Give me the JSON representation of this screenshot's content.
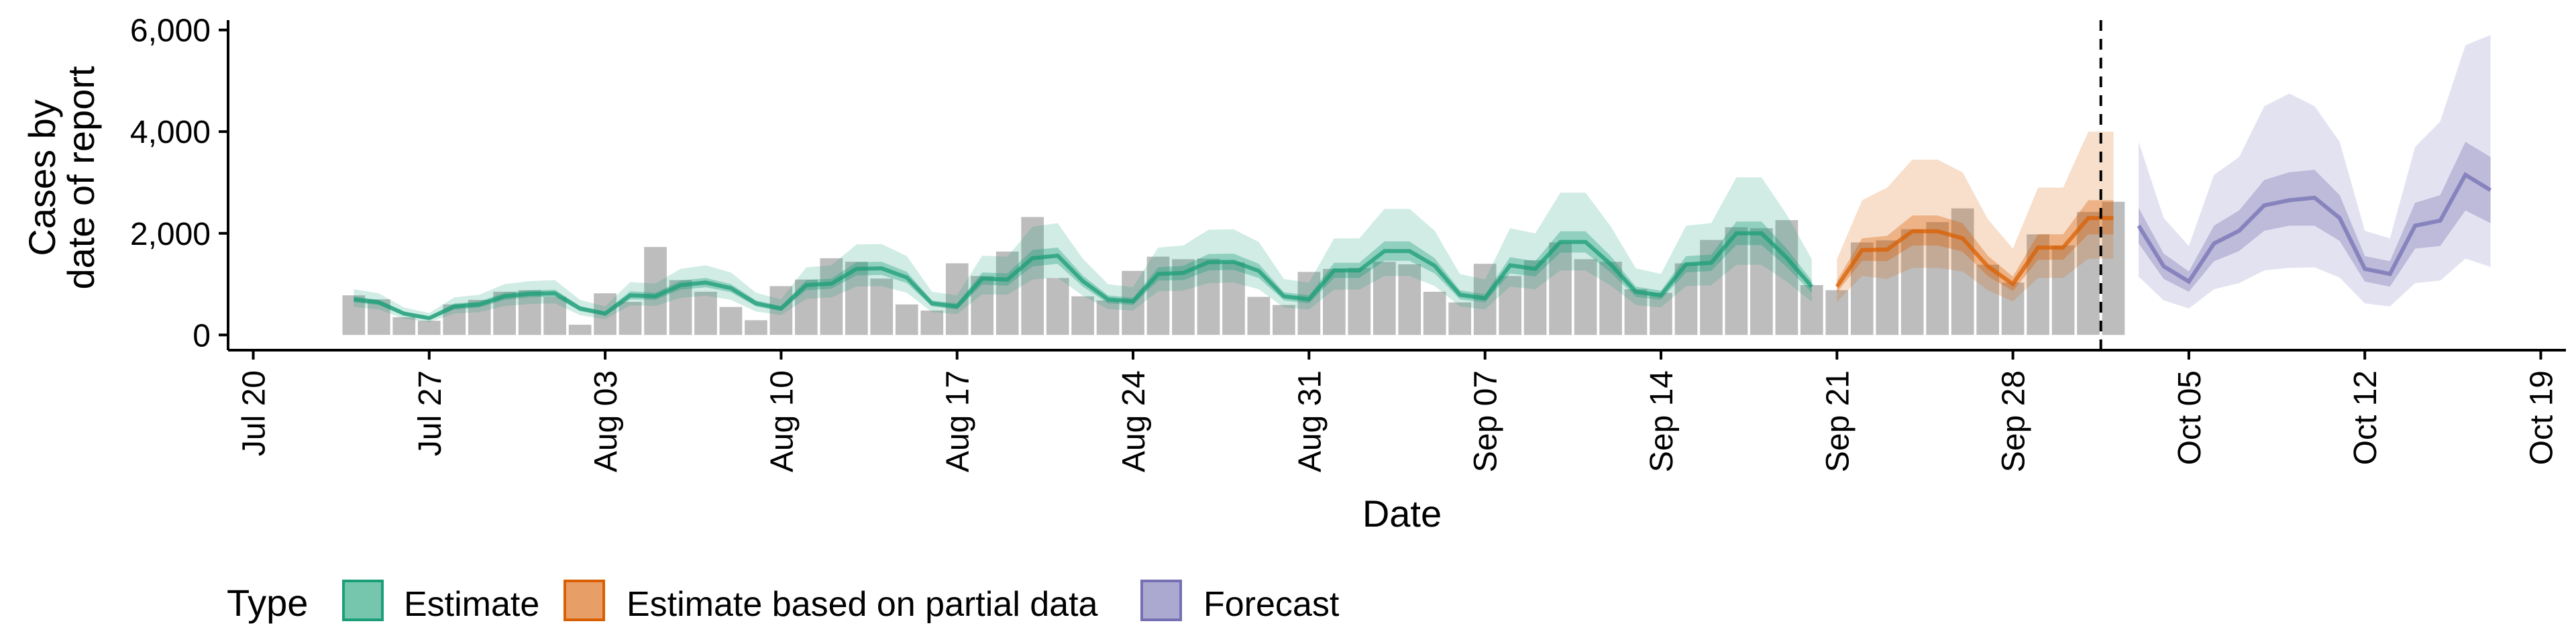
{
  "chart_data": {
    "type": "area",
    "xlabel": "Date",
    "ylabel_lines": [
      "Cases by",
      "date of report"
    ],
    "ylim": [
      -300,
      6300
    ],
    "y_ticks": [
      0,
      2000,
      4000,
      6000
    ],
    "y_tick_labels": [
      "0",
      "2,000",
      "4,000",
      "6,000"
    ],
    "x_ticks": [
      "2020-07-20",
      "2020-07-27",
      "2020-08-03",
      "2020-08-10",
      "2020-08-17",
      "2020-08-24",
      "2020-08-31",
      "2020-09-07",
      "2020-09-14",
      "2020-09-21",
      "2020-09-28",
      "2020-10-05",
      "2020-10-12",
      "2020-10-19"
    ],
    "x_tick_labels": [
      "Jul 20",
      "Jul 27",
      "Aug 03",
      "Aug 10",
      "Aug 17",
      "Aug 24",
      "Aug 31",
      "Sep 07",
      "Sep 14",
      "Sep 21",
      "Sep 28",
      "Oct 05",
      "Oct 12",
      "Oct 19"
    ],
    "xlim": [
      "2020-07-19",
      "2020-10-20"
    ],
    "forecast_start": "2020-10-02",
    "reported_cases": {
      "start_date": "2020-07-24",
      "values": [
        780,
        700,
        350,
        280,
        600,
        690,
        850,
        880,
        750,
        200,
        820,
        650,
        1730,
        1080,
        850,
        550,
        290,
        960,
        1090,
        1510,
        1440,
        1110,
        600,
        480,
        1410,
        1160,
        1640,
        2320,
        1120,
        760,
        680,
        1260,
        1540,
        1490,
        1500,
        1430,
        750,
        590,
        1240,
        1300,
        1320,
        1440,
        1390,
        850,
        640,
        1400,
        1160,
        1470,
        1820,
        1490,
        1440,
        900,
        830,
        1410,
        1870,
        2120,
        2100,
        2260,
        980,
        880,
        1820,
        1860,
        2080,
        2220,
        2490,
        1380,
        1030,
        1980,
        1760,
        2420,
        2620
      ]
    },
    "series": [
      {
        "name": "Estimate",
        "color": "#1b9e77",
        "start_date": "2020-07-24",
        "median": [
          700,
          640,
          420,
          330,
          560,
          600,
          760,
          810,
          820,
          520,
          420,
          780,
          760,
          980,
          1030,
          920,
          620,
          520,
          980,
          1010,
          1300,
          1310,
          1130,
          620,
          560,
          1110,
          1090,
          1510,
          1560,
          1060,
          700,
          660,
          1200,
          1220,
          1430,
          1440,
          1260,
          760,
          700,
          1270,
          1270,
          1650,
          1650,
          1360,
          790,
          720,
          1370,
          1300,
          1830,
          1830,
          1390,
          850,
          780,
          1390,
          1420,
          2000,
          2000,
          1520,
          950
        ],
        "lower50": [
          640,
          590,
          380,
          300,
          500,
          540,
          690,
          740,
          750,
          470,
          380,
          700,
          690,
          890,
          940,
          840,
          560,
          470,
          880,
          910,
          1170,
          1180,
          1020,
          560,
          500,
          990,
          970,
          1350,
          1400,
          950,
          620,
          590,
          1070,
          1080,
          1270,
          1280,
          1120,
          680,
          620,
          1120,
          1120,
          1460,
          1460,
          1210,
          700,
          640,
          1210,
          1150,
          1620,
          1620,
          1230,
          750,
          690,
          1230,
          1260,
          1770,
          1770,
          1340,
          830
        ],
        "upper50": [
          760,
          690,
          460,
          360,
          620,
          660,
          830,
          880,
          890,
          570,
          460,
          860,
          830,
          1070,
          1120,
          1000,
          680,
          570,
          1080,
          1110,
          1430,
          1440,
          1240,
          680,
          620,
          1230,
          1210,
          1670,
          1720,
          1170,
          780,
          730,
          1330,
          1360,
          1590,
          1600,
          1400,
          840,
          780,
          1420,
          1420,
          1840,
          1840,
          1510,
          880,
          800,
          1530,
          1450,
          2040,
          2040,
          1550,
          950,
          870,
          1550,
          1580,
          2230,
          2230,
          1700,
          1070
        ],
        "lower90": [
          550,
          500,
          320,
          250,
          420,
          450,
          570,
          610,
          620,
          390,
          310,
          580,
          570,
          730,
          770,
          690,
          460,
          390,
          710,
          740,
          950,
          960,
          830,
          450,
          410,
          800,
          790,
          1090,
          1130,
          770,
          510,
          480,
          860,
          870,
          1020,
          1030,
          900,
          540,
          500,
          890,
          890,
          1160,
          1160,
          960,
          560,
          500,
          950,
          900,
          1270,
          1270,
          970,
          590,
          540,
          960,
          980,
          1380,
          1380,
          1050,
          650
        ],
        "upper90": [
          900,
          820,
          540,
          430,
          740,
          790,
          1000,
          1060,
          1080,
          690,
          560,
          1040,
          1010,
          1300,
          1370,
          1230,
          830,
          700,
          1330,
          1370,
          1780,
          1790,
          1550,
          850,
          780,
          1560,
          1540,
          2130,
          2200,
          1500,
          1000,
          940,
          1720,
          1760,
          2070,
          2080,
          1830,
          1100,
          1030,
          1900,
          1900,
          2480,
          2480,
          2050,
          1200,
          1090,
          2100,
          2000,
          2800,
          2800,
          2140,
          1310,
          1200,
          2150,
          2200,
          3100,
          3100,
          2370,
          1490
        ]
      },
      {
        "name": "Estimate based on partial data",
        "color": "#d95f02",
        "start_date": "2020-09-21",
        "median": [
          950,
          1670,
          1680,
          2040,
          2040,
          1900,
          1350,
          1000,
          1720,
          1720,
          2300,
          2300
        ],
        "lower50": [
          830,
          1460,
          1450,
          1760,
          1760,
          1640,
          1160,
          860,
          1480,
          1480,
          1980,
          1980
        ],
        "upper50": [
          1070,
          1900,
          1950,
          2350,
          2350,
          2200,
          1560,
          1150,
          1980,
          1980,
          2650,
          2650
        ],
        "lower90": [
          650,
          1160,
          1100,
          1320,
          1320,
          1250,
          880,
          660,
          1120,
          1120,
          1500,
          1500
        ],
        "upper90": [
          1490,
          2650,
          2900,
          3450,
          3450,
          3200,
          2280,
          1700,
          2900,
          2900,
          4000,
          4000
        ]
      },
      {
        "name": "Forecast",
        "color": "#7570b3",
        "start_date": "2020-10-03",
        "median": [
          2150,
          1350,
          1050,
          1800,
          2050,
          2550,
          2650,
          2700,
          2300,
          1300,
          1200,
          2150,
          2250,
          3150,
          2850
        ],
        "lower50": [
          1800,
          1100,
          850,
          1450,
          1650,
          2050,
          2150,
          2150,
          1850,
          1050,
          950,
          1700,
          1750,
          2450,
          2200
        ],
        "upper50": [
          2500,
          1600,
          1250,
          2150,
          2450,
          3050,
          3200,
          3250,
          2750,
          1550,
          1450,
          2600,
          2750,
          3800,
          3500
        ],
        "lower90": [
          1150,
          680,
          520,
          900,
          1020,
          1270,
          1320,
          1330,
          1130,
          620,
          560,
          1020,
          1070,
          1500,
          1340
        ],
        "upper90": [
          3800,
          2300,
          1750,
          3150,
          3500,
          4500,
          4750,
          4500,
          3800,
          2050,
          1900,
          3700,
          4200,
          5700,
          5900
        ]
      }
    ],
    "legend": {
      "title": "Type",
      "position": "bottom",
      "items": [
        "Estimate",
        "Estimate based on partial data",
        "Forecast"
      ]
    },
    "grid": false
  }
}
